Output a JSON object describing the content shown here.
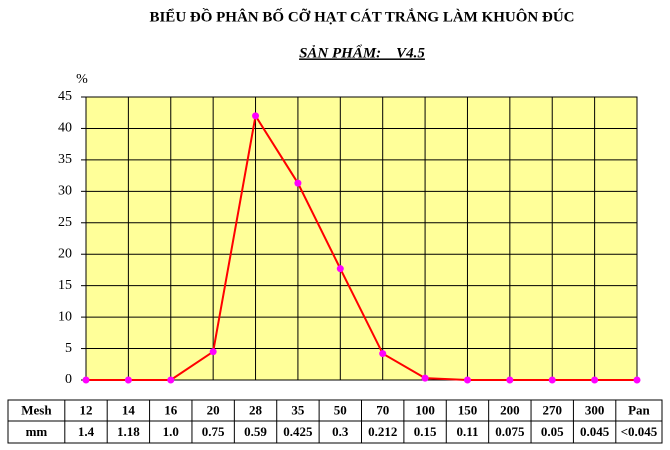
{
  "chart_data": {
    "type": "line",
    "title": "BIỂU ĐỒ PHÂN BỐ CỠ HẠT CÁT TRẮNG LÀM KHUÔN ĐÚC",
    "subtitle": "SẢN PHẨM:    V4.5",
    "y_label": "%",
    "categories": [
      "12",
      "14",
      "16",
      "20",
      "28",
      "35",
      "50",
      "70",
      "100",
      "150",
      "200",
      "270",
      "300",
      "Pan"
    ],
    "values": [
      0,
      0,
      0,
      4.5,
      42,
      31.3,
      17.7,
      4.2,
      0.3,
      0,
      0,
      0,
      0,
      0
    ],
    "color": "#ff0000",
    "marker_color": "#ff00ff",
    "plot_background": "#ffff99",
    "ylim": [
      0,
      45
    ],
    "yticks": [
      0,
      5,
      10,
      15,
      20,
      25,
      30,
      35,
      40,
      45
    ],
    "grid": true,
    "table": {
      "row_labels": [
        "Mesh",
        "mm"
      ],
      "mm": [
        "1.4",
        "1.18",
        "1.0",
        "0.75",
        "0.59",
        "0.425",
        "0.3",
        "0.212",
        "0.15",
        "0.11",
        "0.075",
        "0.05",
        "0.045",
        "<0.045"
      ]
    }
  }
}
